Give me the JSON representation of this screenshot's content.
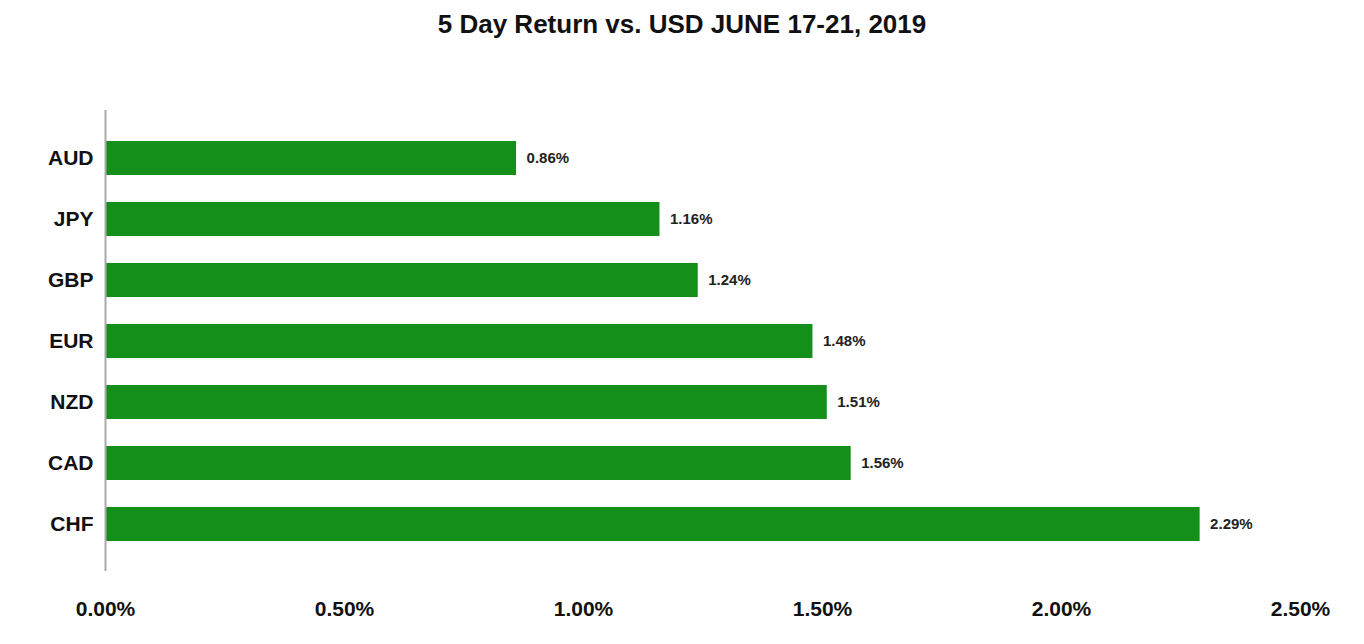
{
  "chart_data": {
    "type": "bar",
    "title": "5 Day Return vs. USD JUNE 17-21, 2019",
    "orientation": "horizontal",
    "categories": [
      "AUD",
      "JPY",
      "GBP",
      "EUR",
      "NZD",
      "CAD",
      "CHF"
    ],
    "values": [
      0.86,
      1.16,
      1.24,
      1.48,
      1.51,
      1.56,
      2.29
    ],
    "value_labels": [
      "0.86%",
      "1.16%",
      "1.24%",
      "1.48%",
      "1.51%",
      "1.56%",
      "2.29%"
    ],
    "color": "#138f1a",
    "xlim": [
      0,
      2.5
    ],
    "xticks": [
      {
        "value": 0,
        "label": "0.00%"
      },
      {
        "value": 0.5,
        "label": "0.50%"
      },
      {
        "value": 1,
        "label": "1.00%"
      },
      {
        "value": 1.5,
        "label": "1.50%"
      },
      {
        "value": 2,
        "label": "2.00%"
      },
      {
        "value": 2.5,
        "label": "2.50%"
      }
    ],
    "grid": false,
    "data_labels": true
  }
}
